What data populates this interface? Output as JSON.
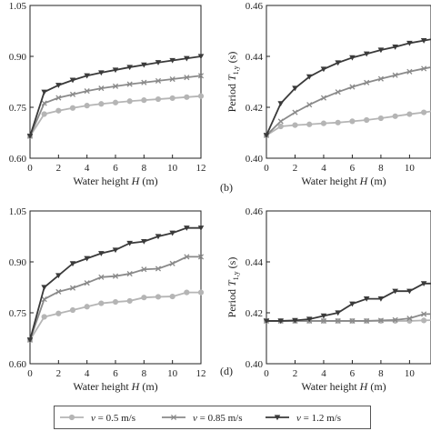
{
  "figure_labels": {
    "b": "(b)",
    "d": "(d)"
  },
  "legend": [
    {
      "label_prefix": "v",
      "label_suffix": " = 0.5 m/s",
      "color": "#b5b5b5",
      "marker": "circle"
    },
    {
      "label_prefix": "v",
      "label_suffix": " = 0.85 m/s",
      "color": "#8a8a8a",
      "marker": "x"
    },
    {
      "label_prefix": "v",
      "label_suffix": " = 1.2 m/s",
      "color": "#3a3a3a",
      "marker": "triangle-down"
    }
  ],
  "chart_data": [
    {
      "id": "top-left",
      "type": "line",
      "xlabel": "Water height",
      "xlabel_var": "H",
      "xlabel_unit": " (m)",
      "ylabel": "",
      "xlim": [
        0,
        12
      ],
      "ylim": [
        0.6,
        1.05
      ],
      "xticks": [
        "0",
        "2",
        "4",
        "6",
        "8",
        "10",
        "12"
      ],
      "yticks": [
        "0.60",
        "0.75",
        "0.90",
        "1.05"
      ],
      "x": [
        0,
        1,
        2,
        3,
        4,
        5,
        6,
        7,
        8,
        9,
        10,
        11,
        12
      ],
      "series": [
        {
          "color": "#b5b5b5",
          "marker": "circle",
          "values": [
            0.665,
            0.73,
            0.74,
            0.748,
            0.755,
            0.76,
            0.764,
            0.768,
            0.771,
            0.774,
            0.777,
            0.78,
            0.783
          ]
        },
        {
          "color": "#8a8a8a",
          "marker": "x",
          "values": [
            0.665,
            0.762,
            0.778,
            0.788,
            0.798,
            0.806,
            0.812,
            0.818,
            0.823,
            0.828,
            0.833,
            0.838,
            0.843
          ]
        },
        {
          "color": "#3a3a3a",
          "marker": "triangle-down",
          "values": [
            0.665,
            0.795,
            0.815,
            0.83,
            0.843,
            0.852,
            0.86,
            0.868,
            0.875,
            0.882,
            0.888,
            0.894,
            0.9
          ]
        }
      ]
    },
    {
      "id": "top-right",
      "type": "line",
      "xlabel": "Water height",
      "xlabel_var": "H",
      "xlabel_unit": " (m)",
      "ylabel": "Period",
      "ylabel_var": "T",
      "ylabel_sub": "1,y",
      "ylabel_unit": " (s)",
      "xlim": [
        0,
        11.5
      ],
      "ylim": [
        0.4,
        0.46
      ],
      "xticks": [
        "0",
        "2",
        "4",
        "6",
        "8",
        "10"
      ],
      "yticks": [
        "0.40",
        "0.42",
        "0.44",
        "0.46"
      ],
      "x": [
        0,
        1,
        2,
        3,
        4,
        5,
        6,
        7,
        8,
        9,
        10,
        11,
        12
      ],
      "series": [
        {
          "color": "#b5b5b5",
          "marker": "circle",
          "values": [
            0.409,
            0.4125,
            0.413,
            0.4133,
            0.4137,
            0.414,
            0.4145,
            0.415,
            0.4157,
            0.4165,
            0.4173,
            0.418,
            0.4188
          ]
        },
        {
          "color": "#8a8a8a",
          "marker": "x",
          "values": [
            0.409,
            0.4145,
            0.418,
            0.421,
            0.4237,
            0.426,
            0.428,
            0.4297,
            0.4312,
            0.4326,
            0.434,
            0.4352,
            0.4363
          ]
        },
        {
          "color": "#3a3a3a",
          "marker": "triangle-down",
          "values": [
            0.409,
            0.4215,
            0.4275,
            0.432,
            0.435,
            0.4375,
            0.4395,
            0.441,
            0.4425,
            0.4437,
            0.4452,
            0.4462,
            0.4472
          ]
        }
      ]
    },
    {
      "id": "bottom-left",
      "type": "line",
      "xlabel": "Water height",
      "xlabel_var": "H",
      "xlabel_unit": " (m)",
      "ylabel": "",
      "xlim": [
        0,
        12
      ],
      "ylim": [
        0.6,
        1.05
      ],
      "xticks": [
        "0",
        "2",
        "4",
        "6",
        "8",
        "10",
        "12"
      ],
      "yticks": [
        "0.60",
        "0.75",
        "0.90",
        "1.05"
      ],
      "x": [
        0,
        1,
        2,
        3,
        4,
        5,
        6,
        7,
        8,
        9,
        10,
        11,
        12
      ],
      "series": [
        {
          "color": "#b5b5b5",
          "marker": "circle",
          "values": [
            0.67,
            0.738,
            0.748,
            0.758,
            0.768,
            0.778,
            0.782,
            0.785,
            0.795,
            0.797,
            0.798,
            0.81,
            0.81
          ]
        },
        {
          "color": "#8a8a8a",
          "marker": "x",
          "values": [
            0.67,
            0.79,
            0.812,
            0.823,
            0.838,
            0.855,
            0.858,
            0.865,
            0.878,
            0.88,
            0.895,
            0.915,
            0.915
          ]
        },
        {
          "color": "#3a3a3a",
          "marker": "triangle-down",
          "values": [
            0.67,
            0.825,
            0.86,
            0.895,
            0.91,
            0.925,
            0.935,
            0.955,
            0.96,
            0.975,
            0.985,
            1.0,
            1.0
          ]
        }
      ]
    },
    {
      "id": "bottom-right",
      "type": "line",
      "xlabel": "Water height",
      "xlabel_var": "H",
      "xlabel_unit": " (m)",
      "ylabel": "Period",
      "ylabel_var": "T",
      "ylabel_sub": "1,y",
      "ylabel_unit": " (s)",
      "xlim": [
        0,
        11.5
      ],
      "ylim": [
        0.4,
        0.46
      ],
      "xticks": [
        "0",
        "2",
        "4",
        "6",
        "8",
        "10"
      ],
      "yticks": [
        "0.40",
        "0.42",
        "0.44",
        "0.46"
      ],
      "x": [
        0,
        1,
        2,
        3,
        4,
        5,
        6,
        7,
        8,
        9,
        10,
        11,
        12
      ],
      "series": [
        {
          "color": "#b5b5b5",
          "marker": "circle",
          "values": [
            0.4168,
            0.4168,
            0.4168,
            0.4168,
            0.4168,
            0.4168,
            0.4168,
            0.4168,
            0.4168,
            0.4168,
            0.4168,
            0.417,
            0.4172
          ]
        },
        {
          "color": "#8a8a8a",
          "marker": "x",
          "values": [
            0.4168,
            0.4168,
            0.4168,
            0.4168,
            0.4168,
            0.4168,
            0.4168,
            0.4168,
            0.417,
            0.4172,
            0.4178,
            0.4195,
            0.4195
          ]
        },
        {
          "color": "#3a3a3a",
          "marker": "triangle-down",
          "values": [
            0.4168,
            0.4168,
            0.417,
            0.4175,
            0.4188,
            0.42,
            0.4235,
            0.4255,
            0.4255,
            0.4285,
            0.4285,
            0.4315,
            0.4315
          ]
        }
      ]
    }
  ]
}
